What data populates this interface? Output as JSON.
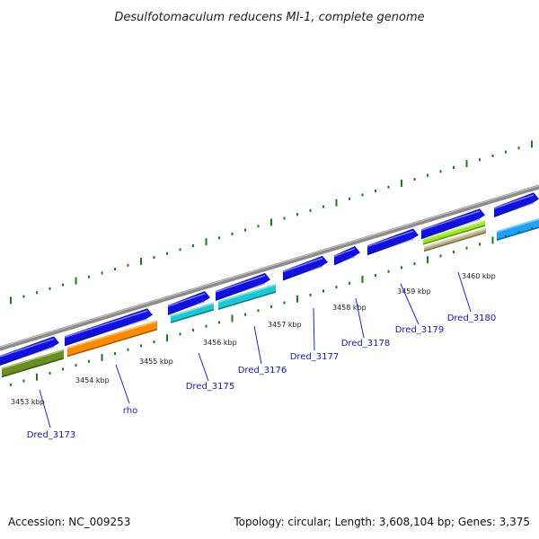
{
  "title": "Desulfotomaculum reducens MI-1, complete genome",
  "footer": {
    "accession": "Accession: NC_009253",
    "summary": "Topology: circular; Length: 3,608,104 bp; Genes: 3,375"
  },
  "colors": {
    "backbone": "#8c8c8c",
    "ticks": "#1f7a1f",
    "label_lines": "#2424c8",
    "label_text": "#1a1aa6",
    "cds_forward": "#1010e0",
    "cyan_feature": "#1ec8d2",
    "orange_feature": "#ff8c00",
    "olive_feature": "#6b8e23",
    "lime_feature": "#9be62a",
    "khaki_feature": "#b8b07a",
    "sky_feature": "#1ea0ff"
  },
  "scale_labels": [
    "3453 kbp",
    "3454 kbp",
    "3455 kbp",
    "3456 kbp",
    "3457 kbp",
    "3458 kbp",
    "3459 kbp",
    "3460 kbp"
  ],
  "gene_labels": [
    "Dred_3173",
    "rho",
    "Dred_3175",
    "Dred_3176",
    "Dred_3177",
    "Dred_3178",
    "Dred_3179",
    "Dred_3180"
  ],
  "features": [
    {
      "name": "cds-1",
      "strand": "forward",
      "color": "cds_forward"
    },
    {
      "name": "cds-2",
      "strand": "forward",
      "color": "cds_forward"
    },
    {
      "name": "cds-3",
      "strand": "forward",
      "color": "cds_forward"
    },
    {
      "name": "cds-4",
      "strand": "forward",
      "color": "cds_forward"
    },
    {
      "name": "cds-5",
      "strand": "forward",
      "color": "cds_forward"
    },
    {
      "name": "cds-6",
      "strand": "forward",
      "color": "cds_forward"
    },
    {
      "name": "cds-7",
      "strand": "forward",
      "color": "cds_forward"
    },
    {
      "name": "cds-8",
      "strand": "forward",
      "color": "cds_forward"
    },
    {
      "name": "cds-9",
      "strand": "forward",
      "color": "cds_forward"
    },
    {
      "name": "olive-band",
      "strand": "forward",
      "color": "olive_feature"
    },
    {
      "name": "orange-band",
      "strand": "forward",
      "color": "orange_feature"
    },
    {
      "name": "cyan-band-1",
      "strand": "forward",
      "color": "cyan_feature"
    },
    {
      "name": "cyan-band-2",
      "strand": "forward",
      "color": "cyan_feature"
    },
    {
      "name": "lime-band",
      "strand": "forward",
      "color": "lime_feature"
    },
    {
      "name": "khaki-band",
      "strand": "forward",
      "color": "khaki_feature"
    },
    {
      "name": "sky-band",
      "strand": "forward",
      "color": "sky_feature"
    }
  ]
}
